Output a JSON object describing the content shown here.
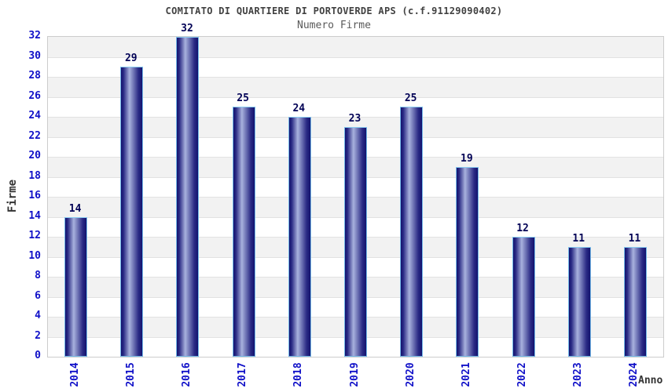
{
  "header": {
    "title": "COMITATO DI QUARTIERE DI PORTOVERDE APS (c.f.91129090402)",
    "subtitle": "Numero Firme"
  },
  "chart_data": {
    "type": "bar",
    "title": "COMITATO DI QUARTIERE DI PORTOVERDE APS (c.f.91129090402)",
    "subtitle": "Numero Firme",
    "categories": [
      "2014",
      "2015",
      "2016",
      "2017",
      "2018",
      "2019",
      "2020",
      "2021",
      "2022",
      "2023",
      "2024"
    ],
    "values": [
      14,
      29,
      32,
      25,
      24,
      23,
      25,
      19,
      12,
      11,
      11
    ],
    "xlabel": "Anno",
    "ylabel": "Firme",
    "ylim": [
      0,
      32
    ],
    "ytick_step": 2,
    "grid": "horizontal-bands",
    "legend": "none",
    "bar_value_labels_shown": true
  },
  "colors": {
    "title_text": "#414141",
    "subtitle_text": "#5a5a5a",
    "axis_tick_text": "#1010c8",
    "bar_value_text": "#000055",
    "axis_title_text": "#333333",
    "plot_border": "#cccccc",
    "band_gray": "#f2f2f2",
    "band_white": "#ffffff",
    "gridline": "#e2e2e2",
    "bar_edge_dark": "#12126e",
    "bar_mid_dark": "#2b2b85",
    "bar_center_light": "#a8b1dd",
    "bar_border": "#74b9e8",
    "bar_border_top": "#8bcdf2"
  }
}
